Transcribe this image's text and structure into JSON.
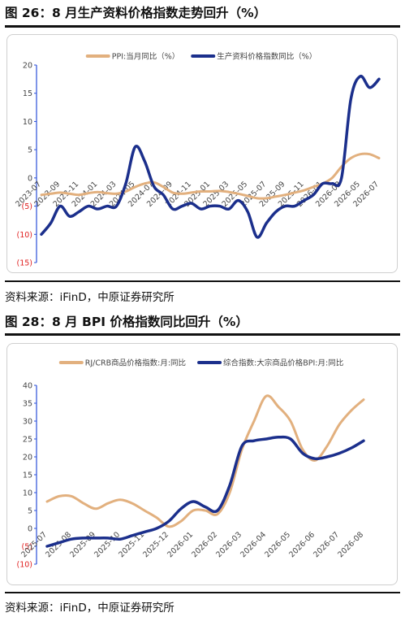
{
  "chart_data": [
    {
      "type": "line",
      "title": "图 26：8 月生产资料价格指数走势回升（%）",
      "source": "资料来源：iFinD，中原证券研究所",
      "categories": [
        "2023-07",
        null,
        "2023-09",
        null,
        "2023-11",
        null,
        "2024-01",
        null,
        "2024-03",
        null,
        "2024-05",
        null,
        "2024-07",
        null,
        "2024-09",
        null,
        "2024-11",
        null,
        "2025-01",
        null,
        "2025-03",
        null,
        "2025-05",
        null,
        "2025-07",
        null,
        "2025-09",
        null,
        "2025-11",
        null,
        "2026-01",
        null,
        "2026-03",
        null,
        "2026-05",
        null,
        "2026-07"
      ],
      "series": [
        {
          "name": "PPI:当月同比（%）",
          "color": "#e2b07e",
          "values": [
            -3,
            -2.8,
            -2.6,
            -2.8,
            -3,
            -2.7,
            -2.5,
            -2.7,
            -2.8,
            -2.4,
            -1.6,
            -1,
            -0.8,
            -1.6,
            -2.6,
            -2.8,
            -2.6,
            -2.4,
            -2.4,
            -2.3,
            -2.5,
            -2.8,
            -3.2,
            -3.6,
            -3.6,
            -3.3,
            -3,
            -2.6,
            -2.2,
            -1.6,
            -1,
            0,
            2,
            3.5,
            4.2,
            4.2,
            3.5
          ]
        },
        {
          "name": "生产资料价格指数同比（%）",
          "color": "#1b2f8c",
          "values": [
            -10,
            -8,
            -5,
            -6.8,
            -6,
            -5,
            -5.5,
            -5,
            -5,
            -1,
            5.5,
            3,
            -1.5,
            -3,
            -5.5,
            -5,
            -4.5,
            -5.5,
            -5,
            -5,
            -5.5,
            -4,
            -6,
            -10.5,
            -8,
            -6,
            -5,
            -5,
            -4,
            -3,
            -1,
            -1,
            0,
            14,
            18,
            16,
            17.5
          ]
        }
      ],
      "ylim": [
        -15,
        20
      ],
      "yticks": [
        {
          "value": -15,
          "label": "(15)"
        },
        {
          "value": -10,
          "label": "(10)"
        },
        {
          "value": -5,
          "label": "(5)"
        },
        0,
        5,
        10,
        15,
        20
      ],
      "negative_tick_color": "#e02020",
      "legend": "top"
    },
    {
      "type": "line",
      "title": "图 28：8 月 BPI 价格指数同比回升（%）",
      "source": "资料来源：iFinD，中原证券研究所",
      "categories": [
        "2025-07",
        null,
        "2025-08",
        null,
        "2025-09",
        null,
        "2025-10",
        null,
        "2025-11",
        null,
        "2025-12",
        null,
        "2026-01",
        null,
        "2026-02",
        null,
        "2026-03",
        null,
        "2026-04",
        null,
        "2026-05",
        null,
        "2026-06",
        null,
        "2026-07",
        null,
        "2026-08"
      ],
      "series": [
        {
          "name": "RJ/CRB商品价格指数:月:同比",
          "color": "#e2b07e",
          "values": [
            7.5,
            9,
            9,
            7,
            5.5,
            7,
            8,
            7,
            5,
            3,
            0.5,
            2,
            5,
            5,
            4,
            10,
            22,
            30,
            37,
            34,
            30,
            22,
            19,
            23,
            29,
            33,
            36
          ]
        },
        {
          "name": "综合指数:大宗商品价格BPI:月:同比",
          "color": "#1b2f8c",
          "values": [
            -5,
            -4,
            -3,
            -2.7,
            -2.7,
            -2.7,
            -3,
            -2,
            -1,
            0,
            2,
            5.5,
            7.5,
            6,
            5,
            12,
            23,
            24.5,
            25,
            25.5,
            25,
            21,
            19.5,
            20,
            21,
            22.5,
            24.5
          ]
        }
      ],
      "ylim": [
        -10,
        40
      ],
      "yticks": [
        {
          "value": -10,
          "label": "(10)"
        },
        {
          "value": -5,
          "label": "(5)"
        },
        0,
        5,
        10,
        15,
        20,
        25,
        30,
        35,
        40
      ],
      "negative_tick_color": "#e02020",
      "legend": "top"
    }
  ]
}
